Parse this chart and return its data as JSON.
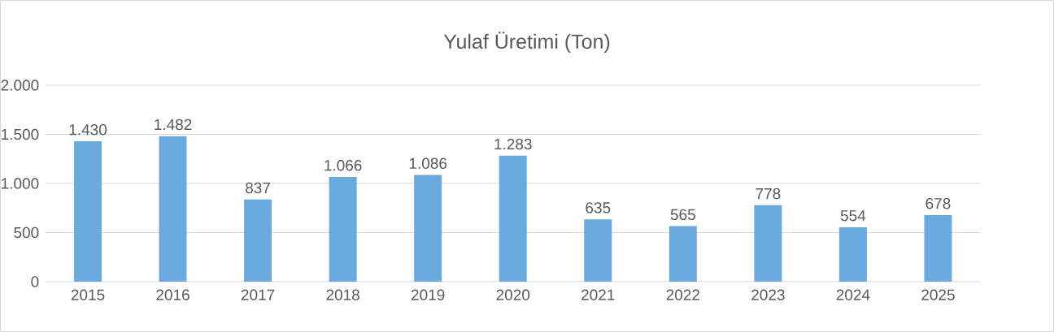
{
  "chart_data": {
    "type": "bar",
    "title": "Yulaf Üretimi (Ton)",
    "categories": [
      "2015",
      "2016",
      "2017",
      "2018",
      "2019",
      "2020",
      "2021",
      "2022",
      "2023",
      "2024",
      "2025"
    ],
    "values": [
      1430,
      1482,
      837,
      1066,
      1086,
      1283,
      635,
      565,
      778,
      554,
      678
    ],
    "value_labels": [
      "1.430",
      "1.482",
      "837",
      "1.066",
      "1.086",
      "1.283",
      "635",
      "565",
      "778",
      "554",
      "678"
    ],
    "color": "#6aaadf",
    "ylim": [
      0,
      2000
    ],
    "yticks": [
      0,
      {
        "value": 500,
        "label": "500"
      },
      {
        "value": 1000,
        "label": "1.000"
      },
      {
        "value": 1500,
        "label": "1.500"
      },
      {
        "value": 2000,
        "label": "2.000"
      }
    ],
    "grid": "y"
  }
}
